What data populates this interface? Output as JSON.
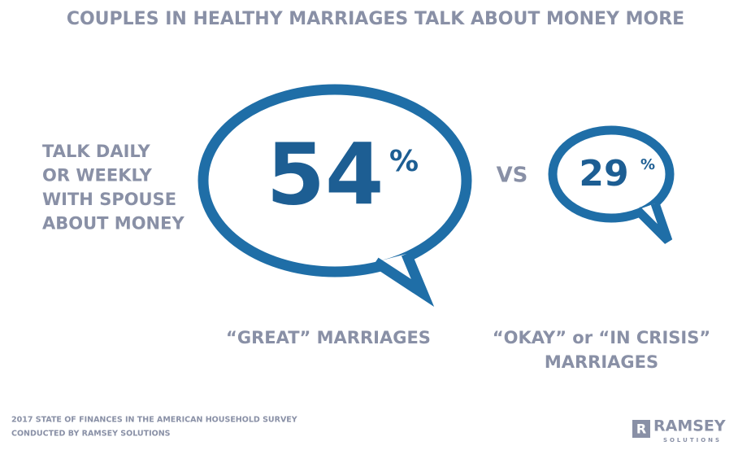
{
  "title": "COUPLES IN HEALTHY MARRIAGES TALK ABOUT MONEY MORE",
  "side_label": [
    "TALK DAILY",
    "OR WEEKLY",
    "WITH SPOUSE",
    "ABOUT MONEY"
  ],
  "vs": "VS",
  "items": [
    {
      "value": "54",
      "unit": "%",
      "label": [
        "“GREAT” MARRIAGES"
      ]
    },
    {
      "value": "29",
      "unit": "%",
      "label": [
        "“OKAY” or “IN CRISIS”",
        "MARRIAGES"
      ]
    }
  ],
  "source": [
    "2017 STATE OF FINANCES IN THE AMERICAN HOUSEHOLD SURVEY",
    "CONDUCTED BY RAMSEY SOLUTIONS"
  ],
  "logo": {
    "mark": "R",
    "name": "RAMSEY",
    "sub": "SOLUTIONS"
  }
}
